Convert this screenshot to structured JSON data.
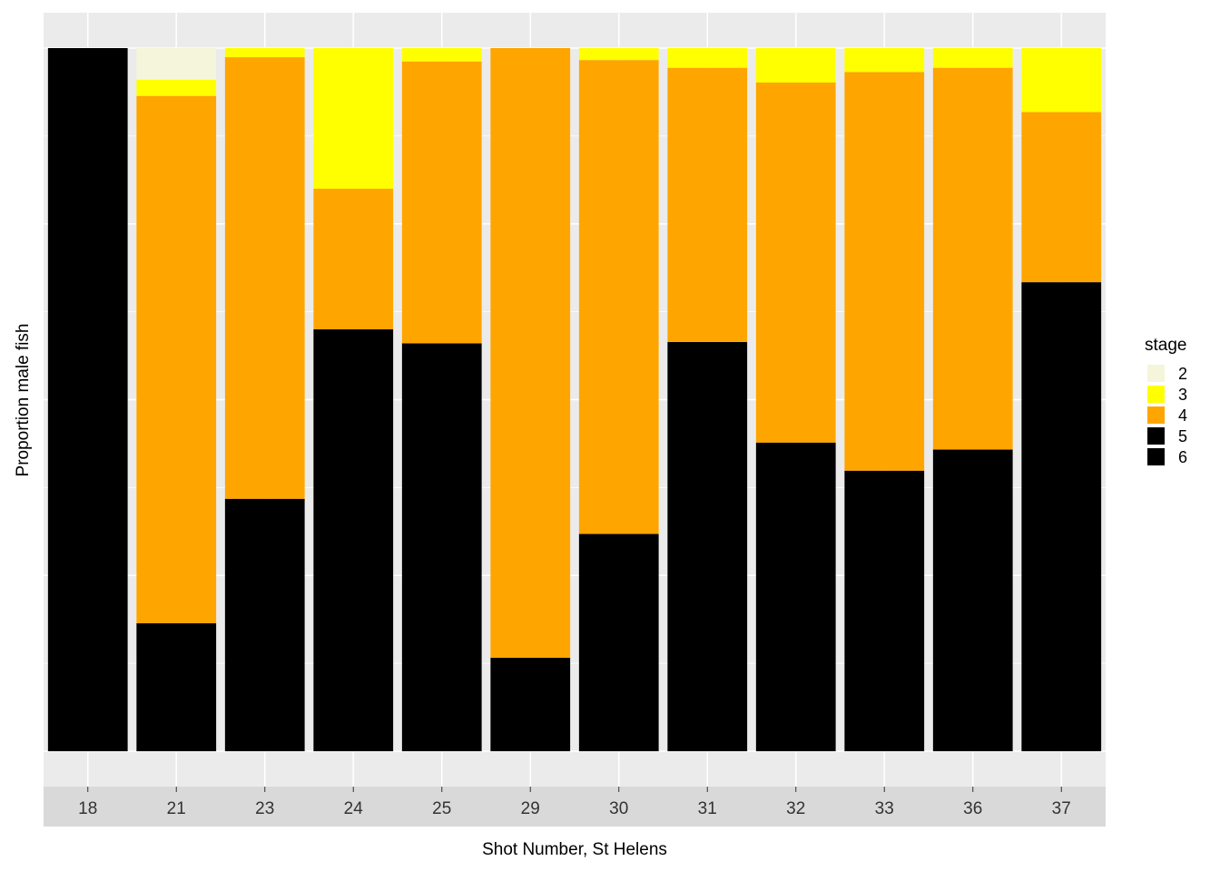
{
  "chart_data": {
    "type": "bar",
    "stacked": true,
    "xlabel": "Shot Number, St Helens",
    "ylabel": "Proportion male fish",
    "ylim": [
      0,
      1
    ],
    "grid": true,
    "legend": {
      "title": "stage",
      "placement": "right"
    },
    "categories": [
      "18",
      "21",
      "23",
      "24",
      "25",
      "29",
      "30",
      "31",
      "32",
      "33",
      "36",
      "37"
    ],
    "series": [
      {
        "name": "6",
        "color": "#000000",
        "values": [
          1.0,
          0.182,
          0.359,
          0.6,
          0.58,
          0.133,
          0.309,
          0.582,
          0.439,
          0.399,
          0.429,
          0.667
        ]
      },
      {
        "name": "5",
        "color": "#000000",
        "values": [
          0,
          0,
          0,
          0,
          0,
          0,
          0,
          0,
          0,
          0,
          0,
          0
        ]
      },
      {
        "name": "4",
        "color": "#FFA500",
        "values": [
          0,
          0.75,
          0.628,
          0.2,
          0.401,
          0.867,
          0.674,
          0.39,
          0.512,
          0.567,
          0.543,
          0.242
        ]
      },
      {
        "name": "3",
        "color": "#FFFF00",
        "values": [
          0,
          0.023,
          0.013,
          0.2,
          0.019,
          0,
          0.017,
          0.028,
          0.049,
          0.034,
          0.028,
          0.091
        ]
      },
      {
        "name": "2",
        "color": "#F5F5DC",
        "values": [
          0,
          0.045,
          0,
          0,
          0,
          0,
          0,
          0,
          0,
          0,
          0,
          0
        ]
      }
    ],
    "legend_order": [
      "2",
      "3",
      "4",
      "5",
      "6"
    ]
  }
}
